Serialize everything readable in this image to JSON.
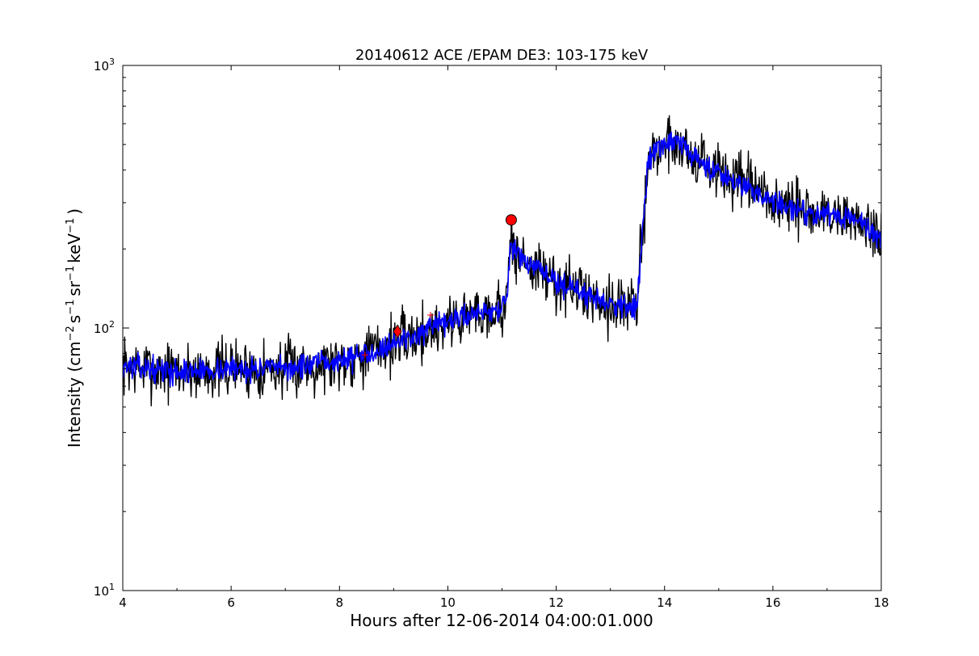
{
  "chart_data": {
    "type": "line",
    "title": "20140612 ACE /EPAM DE3: 103-175 keV",
    "xlabel": "Hours after 12-06-2014 04:00:01.000",
    "ylabel": {
      "base": "Intensity (cm",
      "exp1": "−2",
      "part2": "s",
      "exp2": "−1",
      "part3": "sr",
      "exp3": "−1",
      "part4": "keV",
      "exp4": "−1",
      "close": ")"
    },
    "xlim": [
      4,
      18
    ],
    "ylim": [
      10,
      1000
    ],
    "yscale": "log",
    "xticks": [
      4,
      6,
      8,
      10,
      12,
      14,
      16,
      18
    ],
    "yticks": [
      {
        "value": 10,
        "base": "10",
        "exp": "1"
      },
      {
        "value": 100,
        "base": "10",
        "exp": "2"
      },
      {
        "value": 1000,
        "base": "10",
        "exp": "3"
      }
    ],
    "grid": false,
    "series": [
      {
        "color": "#000000",
        "profile": [
          [
            4.0,
            72
          ],
          [
            5.0,
            68
          ],
          [
            6.0,
            70
          ],
          [
            7.0,
            70
          ],
          [
            8.0,
            75
          ],
          [
            8.5,
            80
          ],
          [
            9.0,
            88
          ],
          [
            9.5,
            95
          ],
          [
            10.0,
            105
          ],
          [
            10.5,
            115
          ],
          [
            11.0,
            118
          ],
          [
            11.1,
            135
          ],
          [
            11.15,
            200
          ],
          [
            11.5,
            175
          ],
          [
            12.0,
            150
          ],
          [
            12.5,
            135
          ],
          [
            13.0,
            125
          ],
          [
            13.5,
            120
          ],
          [
            13.55,
            180
          ],
          [
            13.6,
            240
          ],
          [
            13.7,
            450
          ],
          [
            14.0,
            500
          ],
          [
            14.3,
            510
          ],
          [
            14.5,
            450
          ],
          [
            15.0,
            390
          ],
          [
            15.5,
            350
          ],
          [
            16.0,
            300
          ],
          [
            16.5,
            280
          ],
          [
            17.0,
            270
          ],
          [
            17.5,
            260
          ],
          [
            18.0,
            220
          ]
        ],
        "noise": 0.22,
        "seed": 7,
        "n_points": 1200
      },
      {
        "color": "#0000ff",
        "profile": [
          [
            4.0,
            72
          ],
          [
            5.0,
            68
          ],
          [
            6.0,
            70
          ],
          [
            7.0,
            70
          ],
          [
            8.0,
            75
          ],
          [
            8.5,
            80
          ],
          [
            9.0,
            88
          ],
          [
            9.5,
            95
          ],
          [
            10.0,
            105
          ],
          [
            10.5,
            115
          ],
          [
            11.0,
            118
          ],
          [
            11.1,
            135
          ],
          [
            11.15,
            200
          ],
          [
            11.5,
            175
          ],
          [
            12.0,
            150
          ],
          [
            12.5,
            135
          ],
          [
            13.0,
            125
          ],
          [
            13.5,
            120
          ],
          [
            13.55,
            180
          ],
          [
            13.6,
            240
          ],
          [
            13.7,
            450
          ],
          [
            14.0,
            500
          ],
          [
            14.3,
            510
          ],
          [
            14.5,
            450
          ],
          [
            15.0,
            390
          ],
          [
            15.5,
            350
          ],
          [
            16.0,
            300
          ],
          [
            16.5,
            280
          ],
          [
            17.0,
            270
          ],
          [
            17.5,
            260
          ],
          [
            18.0,
            220
          ]
        ],
        "noise": 0.09,
        "seed": 13,
        "n_points": 1200
      }
    ],
    "markers": [
      {
        "shape": "circle",
        "x": 11.17,
        "y": 258,
        "color": "#ff0000"
      },
      {
        "shape": "diamond",
        "x": 9.07,
        "y": 97,
        "color": "#ff0000"
      },
      {
        "shape": "plus",
        "x": 8.47,
        "y": 79,
        "color": "#ff0000"
      },
      {
        "shape": "plus",
        "x": 9.68,
        "y": 112,
        "color": "#ff0000"
      }
    ]
  }
}
